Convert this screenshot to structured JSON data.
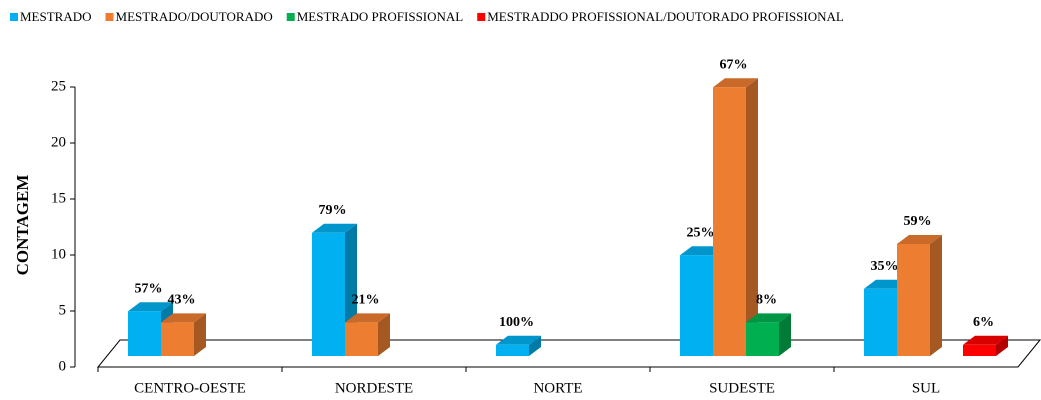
{
  "chart_data": {
    "type": "bar3d",
    "y_label": "CONTAGEM",
    "categories": [
      "CENTRO-OESTE",
      "NORDESTE",
      "NORTE",
      "SUDESTE",
      "SUL"
    ],
    "series": [
      {
        "name": "MESTRADO",
        "color": "#00b0f0",
        "values": [
          4,
          11,
          1,
          9,
          6
        ],
        "data_labels": [
          "57%",
          "79%",
          "100%",
          "25%",
          "35%"
        ]
      },
      {
        "name": "MESTRADO/DOUTORADO",
        "color": "#ed7d31",
        "values": [
          3,
          3,
          null,
          24,
          10
        ],
        "data_labels": [
          "43%",
          "21%",
          null,
          "67%",
          "59%"
        ]
      },
      {
        "name": "MESTRADO PROFISSIONAL",
        "color": "#00b050",
        "values": [
          null,
          null,
          null,
          3,
          null
        ],
        "data_labels": [
          null,
          null,
          null,
          "8%",
          null
        ]
      },
      {
        "name": "MESTRADDO PROFISSIONAL/DOUTORADO PROFISSIONAL",
        "color": "#ff0000",
        "values": [
          null,
          null,
          null,
          null,
          1
        ],
        "data_labels": [
          null,
          null,
          null,
          null,
          "6%"
        ]
      }
    ],
    "ylim": [
      0,
      25
    ],
    "yticks": [
      0,
      5,
      10,
      15,
      20,
      25
    ],
    "legend": "top"
  }
}
